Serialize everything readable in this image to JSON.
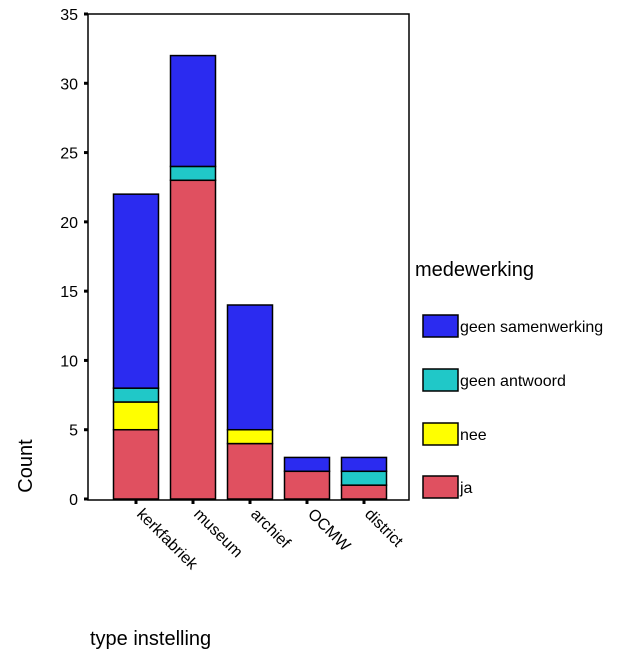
{
  "chart_data": {
    "type": "bar",
    "stacked": true,
    "categories": [
      "kerkfabriek",
      "museum",
      "archief",
      "OCMW",
      "district"
    ],
    "series": [
      {
        "name": "ja",
        "color": "#e05060",
        "values": [
          5,
          23,
          4,
          2,
          1
        ]
      },
      {
        "name": "nee",
        "color": "#ffff00",
        "values": [
          2,
          0,
          1,
          0,
          0
        ]
      },
      {
        "name": "geen antwoord",
        "color": "#20c8c8",
        "values": [
          1,
          1,
          0,
          0,
          1
        ]
      },
      {
        "name": "geen samenwerking",
        "color": "#2b2bf0",
        "values": [
          14,
          8,
          9,
          1,
          1
        ]
      }
    ],
    "xlabel": "type instelling",
    "ylabel": "Count",
    "ylim": [
      0,
      35
    ],
    "yticks": [
      0,
      5,
      10,
      15,
      20,
      25,
      30,
      35
    ],
    "legend_title": "medewerking",
    "legend_position": "right",
    "grid": false
  }
}
